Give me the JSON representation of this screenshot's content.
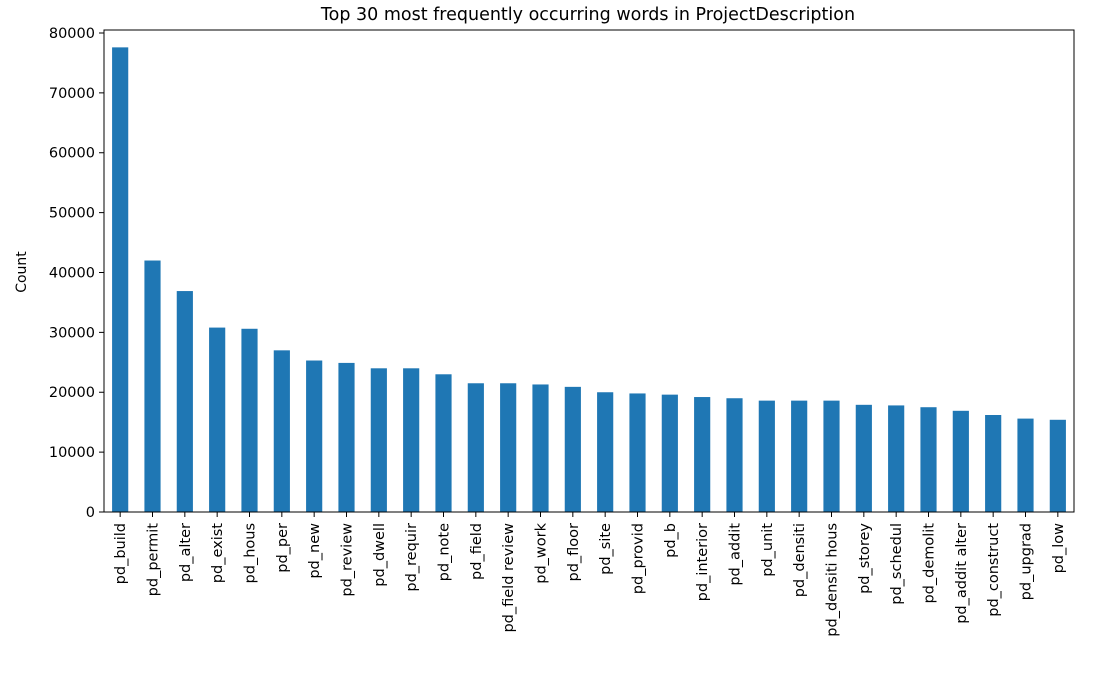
{
  "chart_data": {
    "type": "bar",
    "title": "Top 30 most frequently occurring words in ProjectDescription",
    "xlabel": "",
    "ylabel": "Count",
    "ylim": [
      0,
      80500
    ],
    "yticks": [
      0,
      10000,
      20000,
      30000,
      40000,
      50000,
      60000,
      70000,
      80000
    ],
    "grid": false,
    "legend": "none",
    "bar_color": "#1f77b4",
    "categories": [
      "pd_build",
      "pd_permit",
      "pd_alter",
      "pd_exist",
      "pd_hous",
      "pd_per",
      "pd_new",
      "pd_review",
      "pd_dwell",
      "pd_requir",
      "pd_note",
      "pd_field",
      "pd_field review",
      "pd_work",
      "pd_floor",
      "pd_site",
      "pd_provid",
      "pd_b",
      "pd_interior",
      "pd_addit",
      "pd_unit",
      "pd_densiti",
      "pd_densiti hous",
      "pd_storey",
      "pd_schedul",
      "pd_demolit",
      "pd_addit alter",
      "pd_construct",
      "pd_upgrad",
      "pd_low"
    ],
    "values": [
      77600,
      42000,
      36900,
      30800,
      30600,
      27000,
      25300,
      24900,
      24000,
      24000,
      23000,
      21500,
      21500,
      21300,
      20900,
      20000,
      19800,
      19600,
      19200,
      19000,
      18600,
      18600,
      18600,
      17900,
      17800,
      17500,
      16900,
      16200,
      15600,
      15400
    ]
  }
}
